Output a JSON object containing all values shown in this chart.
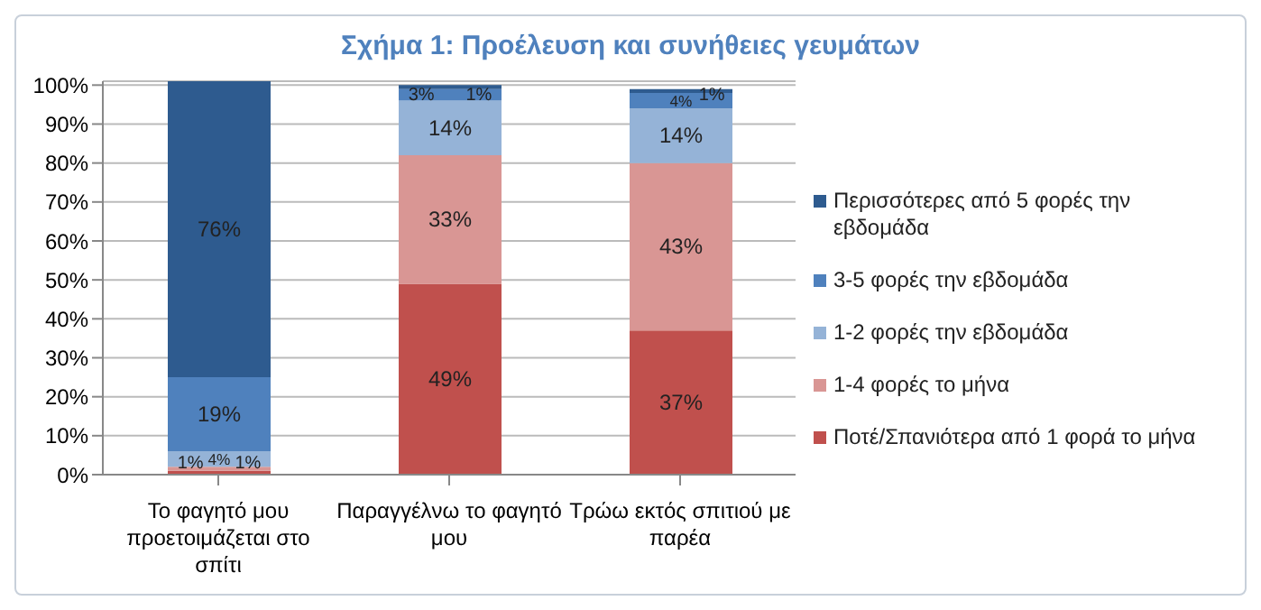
{
  "chart_data": {
    "type": "bar",
    "stacked": true,
    "title": "Σχήμα 1: Προέλευση και συνήθειες γευμάτων",
    "categories": [
      "Το φαγητό μου προετοιμάζεται στο σπίτι",
      "Παραγγέλνω το φαγητό μου",
      "Τρώω εκτός σπιτιού με παρέα"
    ],
    "series": [
      {
        "name": "Ποτέ/Σπανιότερα από 1 φορά το μήνα",
        "color": "#c0504d",
        "values": [
          1,
          49,
          37
        ],
        "value_labels": [
          "1%",
          "49%",
          "37%"
        ]
      },
      {
        "name": "1-4 φορές το μήνα",
        "color": "#d99694",
        "values": [
          1,
          33,
          43
        ],
        "value_labels": [
          "1%",
          "33%",
          "43%"
        ]
      },
      {
        "name": "1-2 φορές την εβδομάδα",
        "color": "#95b3d7",
        "values": [
          4,
          14,
          14
        ],
        "value_labels": [
          "4%",
          "14%",
          "14%"
        ]
      },
      {
        "name": "3-5 φορές την εβδομάδα",
        "color": "#4f81bd",
        "values": [
          19,
          3,
          4
        ],
        "value_labels": [
          "19%",
          "3%",
          "4%"
        ]
      },
      {
        "name": "Περισσότερες από 5 φορές την εβδομάδα",
        "color": "#2e5b8f",
        "values": [
          76,
          1,
          1
        ],
        "value_labels": [
          "76%",
          "1%",
          "1%"
        ]
      }
    ],
    "ylim": [
      0,
      101
    ],
    "yticks": [
      {
        "value": 0,
        "label": "0%"
      },
      {
        "value": 10,
        "label": "10%"
      },
      {
        "value": 20,
        "label": "20%"
      },
      {
        "value": 30,
        "label": "30%"
      },
      {
        "value": 40,
        "label": "40%"
      },
      {
        "value": 50,
        "label": "50%"
      },
      {
        "value": 60,
        "label": "60%"
      },
      {
        "value": 70,
        "label": "70%"
      },
      {
        "value": 80,
        "label": "80%"
      },
      {
        "value": 90,
        "label": "90%"
      },
      {
        "value": 100,
        "label": "100%"
      }
    ],
    "grid": "y",
    "legend": "right"
  }
}
